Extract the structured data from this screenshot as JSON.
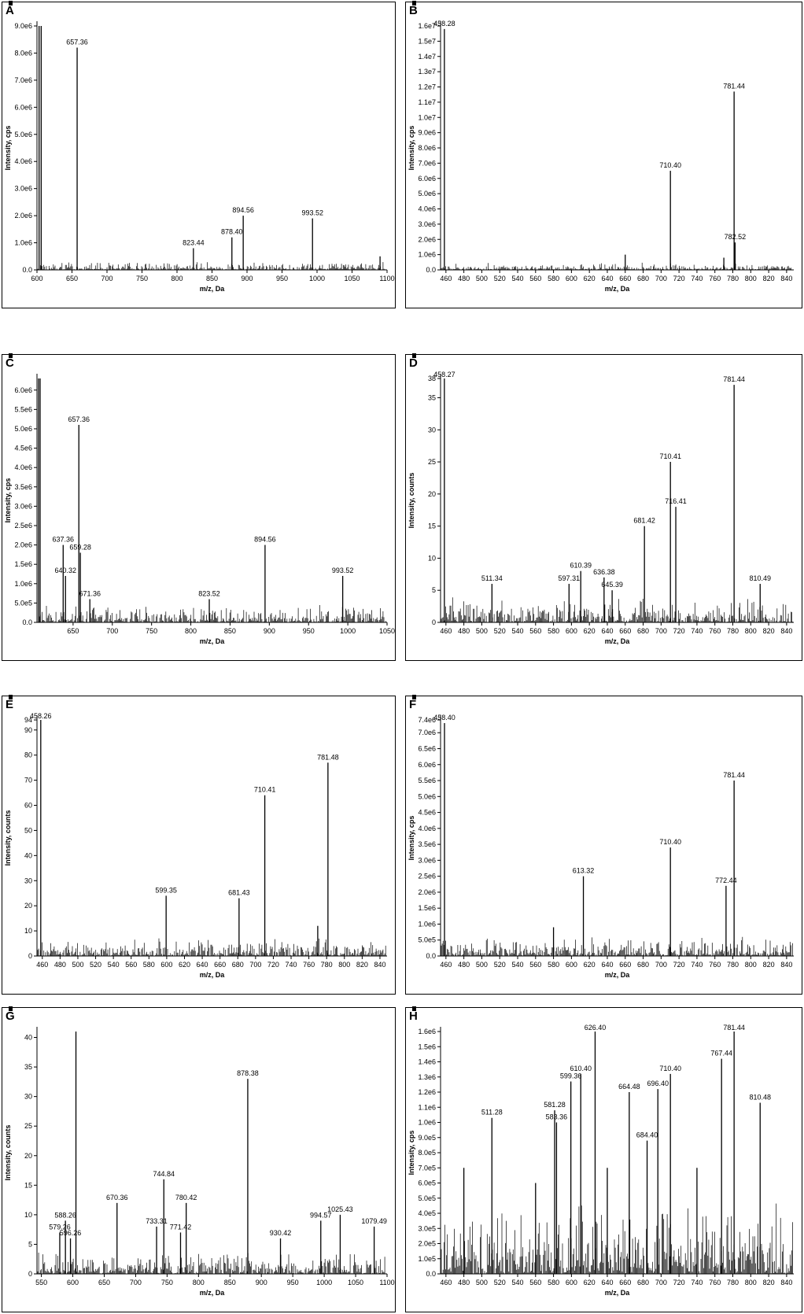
{
  "chart_data": [
    {
      "panel": "A",
      "type": "line",
      "xlabel": "m/z, Da",
      "ylabel": "Intensity, cps",
      "xlim": [
        600,
        1100
      ],
      "ylim": [
        0,
        9000000.0
      ],
      "xticks": [
        600,
        650,
        700,
        750,
        800,
        850,
        900,
        950,
        1000,
        1050,
        1100
      ],
      "yticks": [
        [
          0,
          "0.0"
        ],
        [
          1000000.0,
          "1.0e6"
        ],
        [
          2000000.0,
          "2.0e6"
        ],
        [
          3000000.0,
          "3.0e6"
        ],
        [
          4000000.0,
          "4.0e6"
        ],
        [
          5000000.0,
          "5.0e6"
        ],
        [
          6000000.0,
          "6.0e6"
        ],
        [
          7000000.0,
          "7.0e6"
        ],
        [
          8000000.0,
          "8.0e6"
        ],
        [
          9000000.0,
          "9.0e6"
        ]
      ],
      "noise": 200000.0,
      "peaks": [
        [
          603,
          9000000.0
        ],
        [
          606,
          9000000.0
        ],
        [
          657.36,
          8200000.0
        ],
        [
          823.44,
          800000.0
        ],
        [
          878.4,
          1200000.0
        ],
        [
          894.56,
          2000000.0
        ],
        [
          993.52,
          1900000.0
        ],
        [
          1090,
          500000.0
        ]
      ],
      "labels": [
        [
          657.36,
          8200000.0,
          "657.36"
        ],
        [
          823.44,
          800000.0,
          "823.44"
        ],
        [
          878.4,
          1200000.0,
          "878.40"
        ],
        [
          894.56,
          2000000.0,
          "894.56"
        ],
        [
          993.52,
          1900000.0,
          "993.52"
        ]
      ]
    },
    {
      "panel": "B",
      "type": "line",
      "xlabel": "m/z, Da",
      "ylabel": "Intensity, cps",
      "xlim": [
        454,
        848
      ],
      "ylim": [
        0,
        16000000.0
      ],
      "xticks": [
        460,
        480,
        500,
        520,
        540,
        560,
        580,
        600,
        620,
        640,
        660,
        680,
        700,
        720,
        740,
        760,
        780,
        800,
        820,
        840
      ],
      "yticks": [
        [
          0,
          "0.0"
        ],
        [
          1000000.0,
          "1.0e6"
        ],
        [
          2000000.0,
          "2.0e6"
        ],
        [
          3000000.0,
          "3.0e6"
        ],
        [
          4000000.0,
          "4.0e6"
        ],
        [
          5000000.0,
          "5.0e6"
        ],
        [
          6000000.0,
          "6.0e6"
        ],
        [
          7000000.0,
          "7.0e6"
        ],
        [
          8000000.0,
          "8.0e6"
        ],
        [
          9000000.0,
          "9.0e6"
        ],
        [
          10000000.0,
          "1.0e7"
        ],
        [
          11000000.0,
          "1.1e7"
        ],
        [
          12000000.0,
          "1.2e7"
        ],
        [
          13000000.0,
          "1.3e7"
        ],
        [
          14000000.0,
          "1.4e7"
        ],
        [
          15000000.0,
          "1.5e7"
        ],
        [
          16000000.0,
          "1.6e7"
        ]
      ],
      "noise": 300000.0,
      "peaks": [
        [
          458.28,
          15800000.0
        ],
        [
          710.4,
          6500000.0
        ],
        [
          781.44,
          11700000.0
        ],
        [
          782.52,
          1800000.0
        ],
        [
          660,
          1000000.0
        ],
        [
          770,
          800000.0
        ]
      ],
      "labels": [
        [
          458.28,
          15800000.0,
          "458.28"
        ],
        [
          710.4,
          6500000.0,
          "710.40"
        ],
        [
          781.44,
          11700000.0,
          "781.44"
        ],
        [
          782.52,
          1800000.0,
          "782.52"
        ]
      ]
    },
    {
      "panel": "C",
      "type": "line",
      "xlabel": "m/z, Da",
      "ylabel": "Intensity, cps",
      "xlim": [
        604,
        1050
      ],
      "ylim": [
        0,
        6300000.0
      ],
      "xticks": [
        650,
        700,
        750,
        800,
        850,
        900,
        950,
        1000,
        1050
      ],
      "yticks": [
        [
          0,
          "0.0"
        ],
        [
          500000.0,
          "5.0e5"
        ],
        [
          1000000.0,
          "1.0e6"
        ],
        [
          1500000.0,
          "1.5e6"
        ],
        [
          2000000.0,
          "2.0e6"
        ],
        [
          2500000.0,
          "2.5e6"
        ],
        [
          3000000.0,
          "3.0e6"
        ],
        [
          3500000.0,
          "3.5e6"
        ],
        [
          4000000.0,
          "4.0e6"
        ],
        [
          4500000.0,
          "4.5e6"
        ],
        [
          5000000.0,
          "5.0e6"
        ],
        [
          5500000.0,
          "5.5e6"
        ],
        [
          6000000.0,
          "6.0e6"
        ]
      ],
      "noise": 300000.0,
      "peaks": [
        [
          606,
          6300000.0
        ],
        [
          608,
          6300000.0
        ],
        [
          637.36,
          2000000.0
        ],
        [
          640.32,
          1200000.0
        ],
        [
          657.36,
          5100000.0
        ],
        [
          659.28,
          1800000.0
        ],
        [
          671.36,
          600000.0
        ],
        [
          823.52,
          600000.0
        ],
        [
          894.56,
          2000000.0
        ],
        [
          993.52,
          1200000.0
        ]
      ],
      "labels": [
        [
          637.36,
          2000000.0,
          "637.36"
        ],
        [
          640.32,
          1200000.0,
          "640.32"
        ],
        [
          657.36,
          5100000.0,
          "657.36"
        ],
        [
          659.28,
          1800000.0,
          "659.28"
        ],
        [
          671.36,
          600000.0,
          "671.36"
        ],
        [
          823.52,
          600000.0,
          "823.52"
        ],
        [
          894.56,
          2000000.0,
          "894.56"
        ],
        [
          993.52,
          1200000.0,
          "993.52"
        ]
      ]
    },
    {
      "panel": "D",
      "type": "line",
      "xlabel": "m/z, Da",
      "ylabel": "Intensity, counts",
      "xlim": [
        454,
        848
      ],
      "ylim": [
        0,
        38
      ],
      "xticks": [
        460,
        480,
        500,
        520,
        540,
        560,
        580,
        600,
        620,
        640,
        660,
        680,
        700,
        720,
        740,
        760,
        780,
        800,
        820,
        840
      ],
      "yticks": [
        [
          0,
          "0"
        ],
        [
          5,
          "5"
        ],
        [
          10,
          "10"
        ],
        [
          15,
          "15"
        ],
        [
          20,
          "20"
        ],
        [
          25,
          "25"
        ],
        [
          30,
          "30"
        ],
        [
          35,
          "35"
        ],
        [
          38,
          "38"
        ]
      ],
      "noise": 2.5,
      "peaks": [
        [
          458.27,
          38
        ],
        [
          511.34,
          6
        ],
        [
          597.31,
          6
        ],
        [
          610.39,
          8
        ],
        [
          636.38,
          7
        ],
        [
          645.39,
          5
        ],
        [
          681.42,
          15
        ],
        [
          710.41,
          25
        ],
        [
          716.41,
          18
        ],
        [
          781.44,
          37
        ],
        [
          810.49,
          6
        ]
      ],
      "labels": [
        [
          458.27,
          38,
          "458.27"
        ],
        [
          511.34,
          6,
          "511.34"
        ],
        [
          597.31,
          6,
          "597.31"
        ],
        [
          610.39,
          8,
          "610.39"
        ],
        [
          636.38,
          7,
          "636.38"
        ],
        [
          645.39,
          5,
          "645.39"
        ],
        [
          681.42,
          15,
          "681.42"
        ],
        [
          710.41,
          25,
          "710.41"
        ],
        [
          716.41,
          18,
          "716.41"
        ],
        [
          781.44,
          37,
          "781.44"
        ],
        [
          810.49,
          6,
          "810.49"
        ]
      ]
    },
    {
      "panel": "E",
      "type": "line",
      "xlabel": "m/z, Da",
      "ylabel": "Intensity, counts",
      "xlim": [
        454,
        848
      ],
      "ylim": [
        0,
        94
      ],
      "xticks": [
        460,
        480,
        500,
        520,
        540,
        560,
        580,
        600,
        620,
        640,
        660,
        680,
        700,
        720,
        740,
        760,
        780,
        800,
        820,
        840
      ],
      "yticks": [
        [
          0,
          "0"
        ],
        [
          10,
          "10"
        ],
        [
          20,
          "20"
        ],
        [
          30,
          "30"
        ],
        [
          40,
          "40"
        ],
        [
          50,
          "50"
        ],
        [
          60,
          "60"
        ],
        [
          70,
          "70"
        ],
        [
          80,
          "80"
        ],
        [
          90,
          "90"
        ],
        [
          94,
          "94"
        ]
      ],
      "noise": 5,
      "peaks": [
        [
          458.26,
          94
        ],
        [
          599.35,
          24
        ],
        [
          681.43,
          23
        ],
        [
          710.41,
          64
        ],
        [
          781.48,
          77
        ],
        [
          770,
          12
        ]
      ],
      "labels": [
        [
          458.26,
          94,
          "458.26"
        ],
        [
          599.35,
          24,
          "599.35"
        ],
        [
          681.43,
          23,
          "681.43"
        ],
        [
          710.41,
          64,
          "710.41"
        ],
        [
          781.48,
          77,
          "781.48"
        ]
      ]
    },
    {
      "panel": "F",
      "type": "line",
      "xlabel": "m/z, Da",
      "ylabel": "Intensity, cps",
      "xlim": [
        454,
        848
      ],
      "ylim": [
        0,
        7400000.0
      ],
      "xticks": [
        460,
        480,
        500,
        520,
        540,
        560,
        580,
        600,
        620,
        640,
        660,
        680,
        700,
        720,
        740,
        760,
        780,
        800,
        820,
        840
      ],
      "yticks": [
        [
          0,
          "0.0"
        ],
        [
          500000.0,
          "5.0e5"
        ],
        [
          1000000.0,
          "1.0e6"
        ],
        [
          1500000.0,
          "1.5e6"
        ],
        [
          2000000.0,
          "2.0e6"
        ],
        [
          2500000.0,
          "2.5e6"
        ],
        [
          3000000.0,
          "3.0e6"
        ],
        [
          3500000.0,
          "3.5e6"
        ],
        [
          4000000.0,
          "4.0e6"
        ],
        [
          4500000.0,
          "4.5e6"
        ],
        [
          5000000.0,
          "5.0e6"
        ],
        [
          5500000.0,
          "5.5e6"
        ],
        [
          6000000.0,
          "6.0e6"
        ],
        [
          6500000.0,
          "6.5e6"
        ],
        [
          7000000.0,
          "7.0e6"
        ],
        [
          7400000.0,
          "7.4e6"
        ]
      ],
      "noise": 400000.0,
      "peaks": [
        [
          458.4,
          7300000.0
        ],
        [
          613.32,
          2500000.0
        ],
        [
          710.4,
          3400000.0
        ],
        [
          772.44,
          2200000.0
        ],
        [
          781.44,
          5500000.0
        ],
        [
          580,
          900000.0
        ]
      ],
      "labels": [
        [
          458.4,
          7300000.0,
          "458.40"
        ],
        [
          613.32,
          2500000.0,
          "613.32"
        ],
        [
          710.4,
          3400000.0,
          "710.40"
        ],
        [
          772.44,
          2200000.0,
          "772.44"
        ],
        [
          781.44,
          5500000.0,
          "781.44"
        ]
      ]
    },
    {
      "panel": "G",
      "type": "line",
      "xlabel": "m/z, Da",
      "ylabel": "Intensity, counts",
      "xlim": [
        543,
        1100
      ],
      "ylim": [
        0,
        41
      ],
      "xticks": [
        550,
        600,
        650,
        700,
        750,
        800,
        850,
        900,
        950,
        1000,
        1050,
        1100
      ],
      "yticks": [
        [
          0,
          "0"
        ],
        [
          5,
          "5"
        ],
        [
          10,
          "10"
        ],
        [
          15,
          "15"
        ],
        [
          20,
          "20"
        ],
        [
          25,
          "25"
        ],
        [
          30,
          "30"
        ],
        [
          35,
          "35"
        ],
        [
          40,
          "40"
        ]
      ],
      "noise": 2.5,
      "peaks": [
        [
          579.26,
          7
        ],
        [
          588.26,
          9
        ],
        [
          596.26,
          6
        ],
        [
          605,
          41
        ],
        [
          670.36,
          12
        ],
        [
          733.31,
          8
        ],
        [
          744.84,
          16
        ],
        [
          771.42,
          7
        ],
        [
          780.42,
          12
        ],
        [
          878.38,
          33
        ],
        [
          930.42,
          6
        ],
        [
          994.57,
          9
        ],
        [
          1025.43,
          10
        ],
        [
          1079.49,
          8
        ]
      ],
      "labels": [
        [
          579.26,
          7,
          "579.26"
        ],
        [
          588.26,
          9,
          "588.26"
        ],
        [
          596.26,
          6,
          "596.26"
        ],
        [
          670.36,
          12,
          "670.36"
        ],
        [
          733.31,
          8,
          "733.31"
        ],
        [
          744.84,
          16,
          "744.84"
        ],
        [
          771.42,
          7,
          "771.42"
        ],
        [
          780.42,
          12,
          "780.42"
        ],
        [
          878.38,
          33,
          "878.38"
        ],
        [
          930.42,
          6,
          "930.42"
        ],
        [
          994.57,
          9,
          "994.57"
        ],
        [
          1025.43,
          10,
          "1025.43"
        ],
        [
          1079.49,
          8,
          "1079.49"
        ]
      ]
    },
    {
      "panel": "H",
      "type": "line",
      "xlabel": "m/z, Da",
      "ylabel": "Intensity, cps",
      "xlim": [
        454,
        848
      ],
      "ylim": [
        0,
        1600000.0
      ],
      "xticks": [
        460,
        480,
        500,
        520,
        540,
        560,
        580,
        600,
        620,
        640,
        660,
        680,
        700,
        720,
        740,
        760,
        780,
        800,
        820,
        840
      ],
      "yticks": [
        [
          0,
          "0.0"
        ],
        [
          100000.0,
          "1.0e5"
        ],
        [
          200000.0,
          "2.0e5"
        ],
        [
          300000.0,
          "3.0e5"
        ],
        [
          400000.0,
          "4.0e5"
        ],
        [
          500000.0,
          "5.0e5"
        ],
        [
          600000.0,
          "6.0e5"
        ],
        [
          700000.0,
          "7.0e5"
        ],
        [
          800000.0,
          "8.0e5"
        ],
        [
          900000.0,
          "9.0e5"
        ],
        [
          1000000.0,
          "1.0e6"
        ],
        [
          1100000.0,
          "1.1e6"
        ],
        [
          1200000.0,
          "1.2e6"
        ],
        [
          1300000.0,
          "1.3e6"
        ],
        [
          1400000.0,
          "1.4e6"
        ],
        [
          1500000.0,
          "1.5e6"
        ],
        [
          1600000.0,
          "1.6e6"
        ]
      ],
      "noise": 320000.0,
      "peaks": [
        [
          511.28,
          1030000.0
        ],
        [
          581.28,
          1080000.0
        ],
        [
          583.36,
          1000000.0
        ],
        [
          599.36,
          1270000.0
        ],
        [
          610.4,
          1320000.0
        ],
        [
          626.4,
          1600000.0
        ],
        [
          664.48,
          1200000.0
        ],
        [
          684.4,
          880000.0
        ],
        [
          696.4,
          1220000.0
        ],
        [
          710.4,
          1320000.0
        ],
        [
          767.44,
          1420000.0
        ],
        [
          781.44,
          1600000.0
        ],
        [
          810.48,
          1130000.0
        ],
        [
          480,
          700000.0
        ],
        [
          560,
          600000.0
        ],
        [
          640,
          700000.0
        ],
        [
          740,
          700000.0
        ]
      ],
      "labels": [
        [
          511.28,
          1030000.0,
          "511.28"
        ],
        [
          581.28,
          1080000.0,
          "581.28"
        ],
        [
          583.36,
          1000000.0,
          "583.36"
        ],
        [
          599.36,
          1270000.0,
          "599.36"
        ],
        [
          610.4,
          1320000.0,
          "610.40"
        ],
        [
          626.4,
          1600000.0,
          "626.40"
        ],
        [
          664.48,
          1200000.0,
          "664.48"
        ],
        [
          684.4,
          880000.0,
          "684.40"
        ],
        [
          696.4,
          1220000.0,
          "696.40"
        ],
        [
          710.4,
          1320000.0,
          "710.40"
        ],
        [
          767.44,
          1420000.0,
          "767.44"
        ],
        [
          781.44,
          1600000.0,
          "781.44"
        ],
        [
          810.48,
          1130000.0,
          "810.48"
        ]
      ]
    }
  ]
}
